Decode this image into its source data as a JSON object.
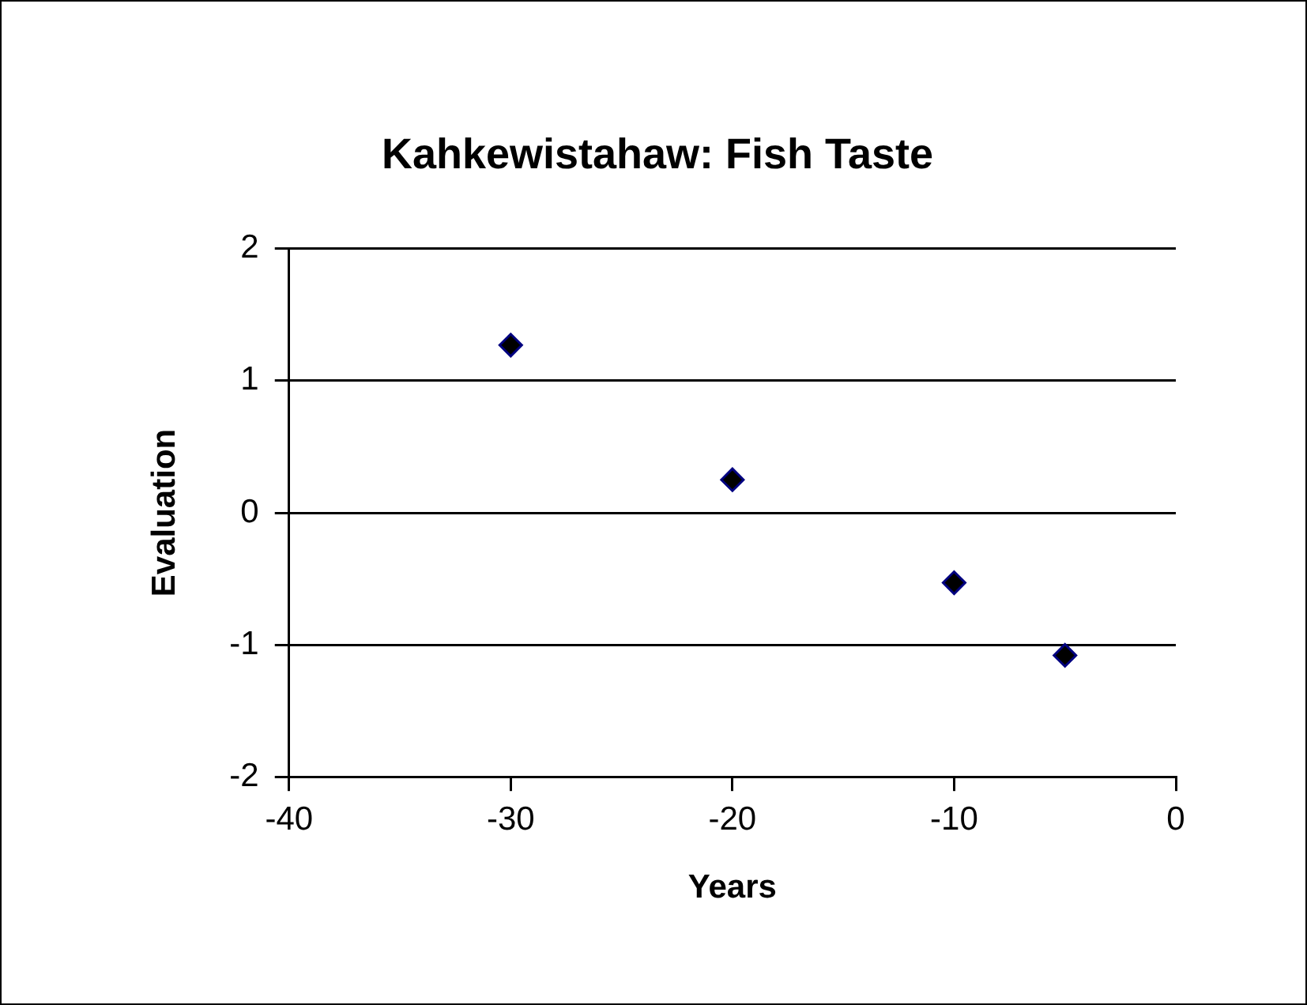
{
  "chart_data": {
    "type": "scatter",
    "title": "Kahkewistahaw: Fish Taste",
    "xlabel": "Years",
    "ylabel": "Evaluation",
    "x": [
      -30,
      -20,
      -10,
      -5
    ],
    "series": [
      {
        "color": "#000000",
        "values": [
          1.27,
          0.25,
          -0.53,
          -1.08
        ]
      }
    ],
    "xlim": [
      -40,
      0
    ],
    "xticks": [
      -40,
      -30,
      -20,
      -10,
      0
    ],
    "ylim": [
      -2,
      2
    ],
    "yticks": [
      -2,
      -1,
      0,
      1,
      2
    ],
    "grid": "y",
    "legend": false,
    "marker": "diamond"
  }
}
